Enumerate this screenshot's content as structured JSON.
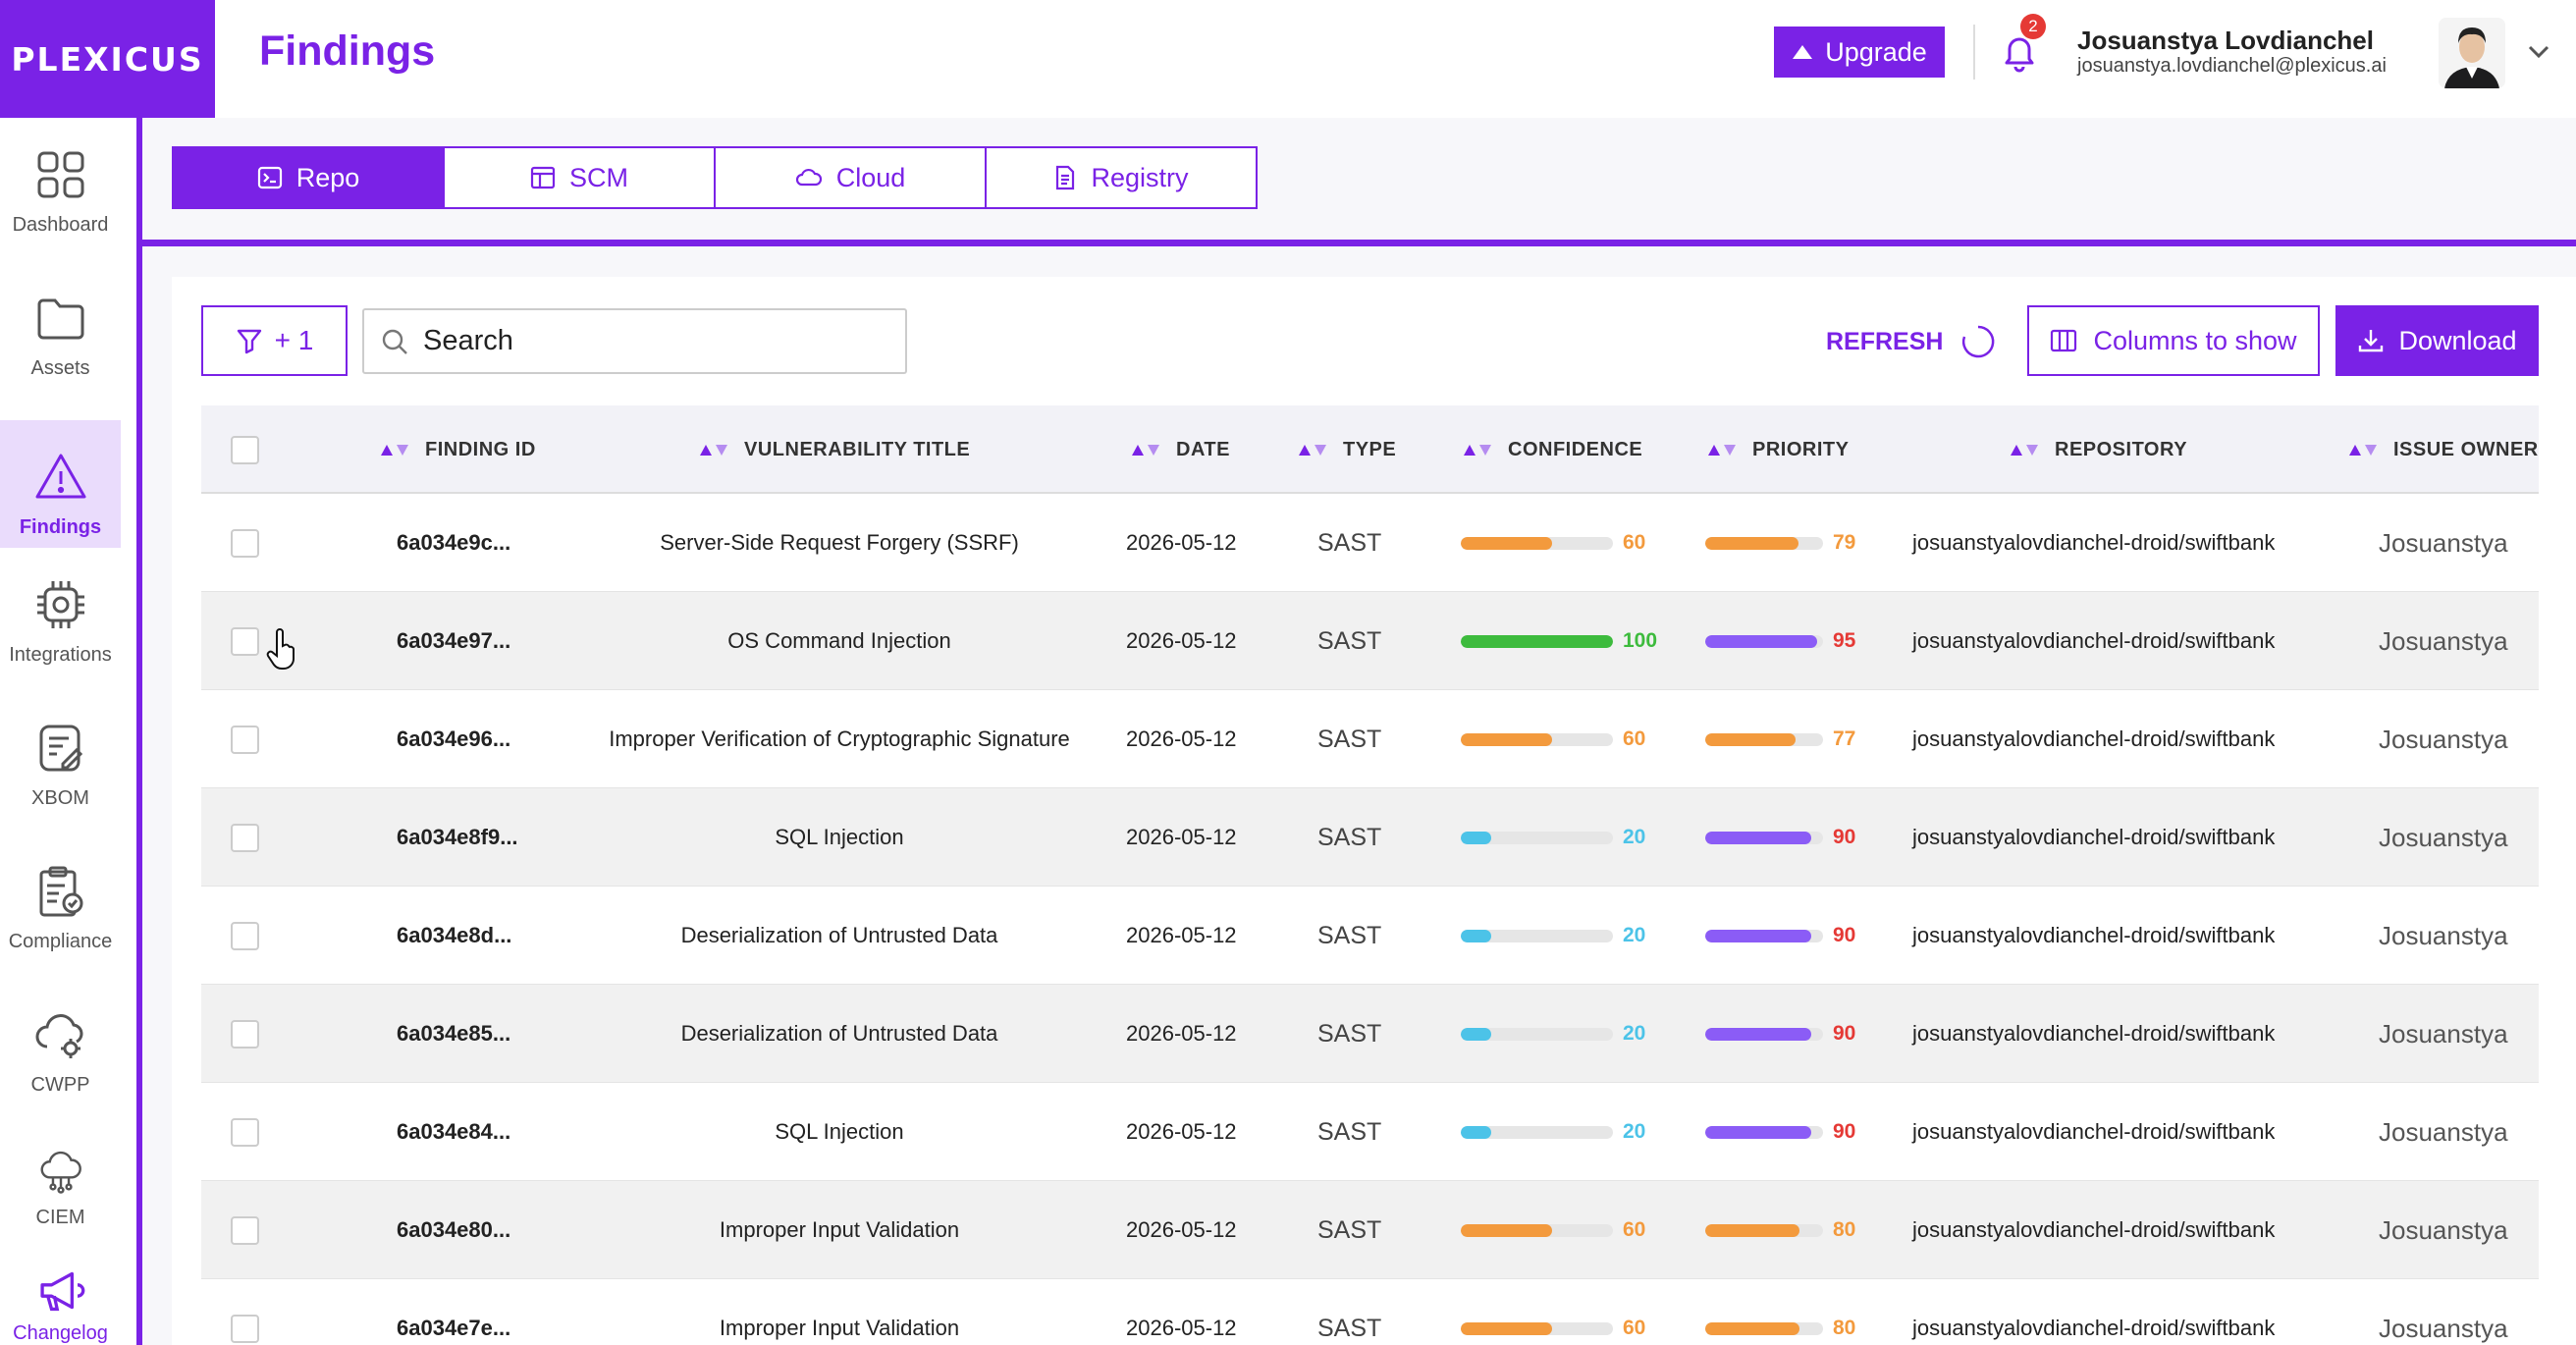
{
  "brand": {
    "logo_text": "PLEXICUS",
    "accent": "#7a22e6"
  },
  "sidebar": {
    "items": [
      {
        "key": "dashboard",
        "label": "Dashboard",
        "icon": "dashboard-grid-icon"
      },
      {
        "key": "assets",
        "label": "Assets",
        "icon": "folder-icon"
      },
      {
        "key": "findings",
        "label": "Findings",
        "icon": "warning-triangle-icon",
        "active": true
      },
      {
        "key": "integrations",
        "label": "Integrations",
        "icon": "chip-icon"
      },
      {
        "key": "xbom",
        "label": "XBOM",
        "icon": "document-edit-icon"
      },
      {
        "key": "compliance",
        "label": "Compliance",
        "icon": "clipboard-check-icon"
      },
      {
        "key": "cwpp",
        "label": "CWPP",
        "icon": "cloud-gear-icon"
      },
      {
        "key": "ciem",
        "label": "CIEM",
        "icon": "cloud-network-icon"
      }
    ],
    "changelog_label": "Changelog"
  },
  "header": {
    "title": "Findings",
    "upgrade_label": "Upgrade",
    "notification_count": "2",
    "user_name": "Josuanstya Lovdianchel",
    "user_email": "josuanstya.lovdianchel@plexicus.ai"
  },
  "tabs": [
    {
      "label": "Repo",
      "icon": "terminal-icon",
      "active": true
    },
    {
      "label": "SCM",
      "icon": "table-icon",
      "active": false
    },
    {
      "label": "Cloud",
      "icon": "cloud-icon",
      "active": false
    },
    {
      "label": "Registry",
      "icon": "document-icon",
      "active": false
    }
  ],
  "toolbar": {
    "filter_label": "+ 1",
    "search_placeholder": "Search",
    "refresh_label": "REFRESH",
    "columns_label": "Columns to show",
    "download_label": "Download"
  },
  "table": {
    "columns": [
      "FINDING ID",
      "VULNERABILITY TITLE",
      "DATE",
      "TYPE",
      "CONFIDENCE",
      "PRIORITY",
      "REPOSITORY",
      "ISSUE OWNER"
    ],
    "rows": [
      {
        "id": "6a034e9c...",
        "title": "Server-Side Request Forgery (SSRF)",
        "date": "2026-05-12",
        "type": "SAST",
        "confidence": 60,
        "confidence_color": "#f39a3d",
        "priority": 79,
        "priority_color": "#f39a3d",
        "priority_text_color": "#f39a3d",
        "repository": "josuanstyalovdianchel-droid/swiftbank",
        "owner": "Josuanstya"
      },
      {
        "id": "6a034e97...",
        "title": "OS Command Injection",
        "date": "2026-05-12",
        "type": "SAST",
        "confidence": 100,
        "confidence_color": "#3dbb3d",
        "priority": 95,
        "priority_color": "#8b5cf6",
        "priority_text_color": "#e53935",
        "repository": "josuanstyalovdianchel-droid/swiftbank",
        "owner": "Josuanstya"
      },
      {
        "id": "6a034e96...",
        "title": "Improper Verification of Cryptographic Signature",
        "date": "2026-05-12",
        "type": "SAST",
        "confidence": 60,
        "confidence_color": "#f39a3d",
        "priority": 77,
        "priority_color": "#f39a3d",
        "priority_text_color": "#f39a3d",
        "repository": "josuanstyalovdianchel-droid/swiftbank",
        "owner": "Josuanstya"
      },
      {
        "id": "6a034e8f9...",
        "title": "SQL Injection",
        "date": "2026-05-12",
        "type": "SAST",
        "confidence": 20,
        "confidence_color": "#4cc3e8",
        "priority": 90,
        "priority_color": "#8b5cf6",
        "priority_text_color": "#e53935",
        "repository": "josuanstyalovdianchel-droid/swiftbank",
        "owner": "Josuanstya"
      },
      {
        "id": "6a034e8d...",
        "title": "Deserialization of Untrusted Data",
        "date": "2026-05-12",
        "type": "SAST",
        "confidence": 20,
        "confidence_color": "#4cc3e8",
        "priority": 90,
        "priority_color": "#8b5cf6",
        "priority_text_color": "#e53935",
        "repository": "josuanstyalovdianchel-droid/swiftbank",
        "owner": "Josuanstya"
      },
      {
        "id": "6a034e85...",
        "title": "Deserialization of Untrusted Data",
        "date": "2026-05-12",
        "type": "SAST",
        "confidence": 20,
        "confidence_color": "#4cc3e8",
        "priority": 90,
        "priority_color": "#8b5cf6",
        "priority_text_color": "#e53935",
        "repository": "josuanstyalovdianchel-droid/swiftbank",
        "owner": "Josuanstya"
      },
      {
        "id": "6a034e84...",
        "title": "SQL Injection",
        "date": "2026-05-12",
        "type": "SAST",
        "confidence": 20,
        "confidence_color": "#4cc3e8",
        "priority": 90,
        "priority_color": "#8b5cf6",
        "priority_text_color": "#e53935",
        "repository": "josuanstyalovdianchel-droid/swiftbank",
        "owner": "Josuanstya"
      },
      {
        "id": "6a034e80...",
        "title": "Improper Input Validation",
        "date": "2026-05-12",
        "type": "SAST",
        "confidence": 60,
        "confidence_color": "#f39a3d",
        "priority": 80,
        "priority_color": "#f39a3d",
        "priority_text_color": "#f39a3d",
        "repository": "josuanstyalovdianchel-droid/swiftbank",
        "owner": "Josuanstya"
      },
      {
        "id": "6a034e7e...",
        "title": "Improper Input Validation",
        "date": "2026-05-12",
        "type": "SAST",
        "confidence": 60,
        "confidence_color": "#f39a3d",
        "priority": 80,
        "priority_color": "#f39a3d",
        "priority_text_color": "#f39a3d",
        "repository": "josuanstyalovdianchel-droid/swiftbank",
        "owner": "Josuanstya"
      }
    ]
  }
}
